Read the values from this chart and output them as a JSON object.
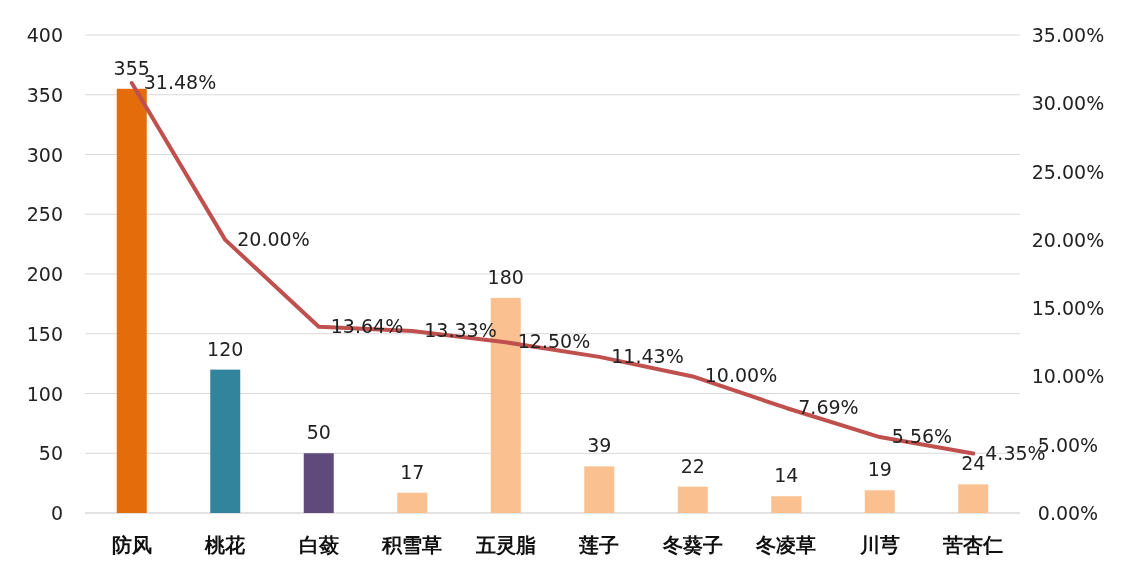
{
  "chart_data": {
    "type": "bar",
    "categories": [
      "防风",
      "桃花",
      "白蔹",
      "积雪草",
      "五灵脂",
      "莲子",
      "冬葵子",
      "冬凌草",
      "川芎",
      "苦杏仁"
    ],
    "series": [
      {
        "colors": [
          "#e46c0a",
          "#31849b",
          "#604a7b",
          "#fac090",
          "#fac090",
          "#fac090",
          "#fac090",
          "#fac090",
          "#fac090",
          "#fac090"
        ],
        "values": [
          355,
          120,
          50,
          17,
          180,
          39,
          22,
          14,
          19,
          24
        ]
      },
      {
        "type": "line",
        "axis": "y2",
        "color": "#c0504d",
        "values": [
          31.48,
          20.0,
          13.64,
          13.33,
          12.5,
          11.43,
          10.0,
          7.69,
          5.56,
          4.35
        ],
        "value_labels": [
          "31.48%",
          "20.00%",
          "13.64%",
          "13.33%",
          "12.50%",
          "11.43%",
          "10.00%",
          "7.69%",
          "5.56%",
          "4.35%"
        ]
      }
    ],
    "ylim": [
      0,
      400
    ],
    "yticks": [
      0,
      50,
      100,
      150,
      200,
      250,
      300,
      350,
      400
    ],
    "y2lim": [
      0,
      35
    ],
    "y2ticks": [
      {
        "value": 0,
        "label": "0.00%"
      },
      {
        "value": 5,
        "label": "5.00%"
      },
      {
        "value": 10,
        "label": "10.00%"
      },
      {
        "value": 15,
        "label": "15.00%"
      },
      {
        "value": 20,
        "label": "20.00%"
      },
      {
        "value": 25,
        "label": "25.00%"
      },
      {
        "value": 30,
        "label": "30.00%"
      },
      {
        "value": 35,
        "label": "35.00%"
      }
    ],
    "grid": "y",
    "data_labels": true,
    "marker": "none"
  }
}
